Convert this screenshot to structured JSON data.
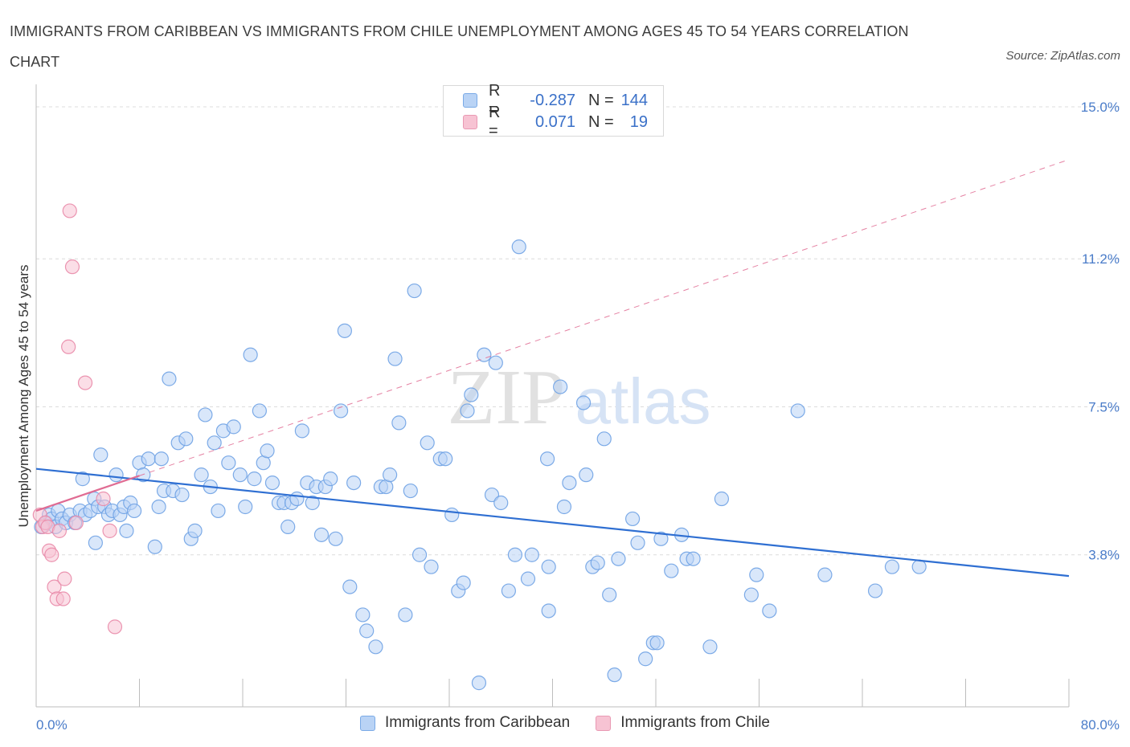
{
  "title": "IMMIGRANTS FROM CARIBBEAN VS IMMIGRANTS FROM CHILE UNEMPLOYMENT AMONG AGES 45 TO 54 YEARS CORRELATION CHART",
  "source": "Source: ZipAtlas.com",
  "watermark": {
    "zip": "ZIP",
    "atlas": "atlas"
  },
  "legend": {
    "rows": [
      {
        "r_label": "R =",
        "r_value": "-0.287",
        "n_label": "N =",
        "n_value": "144",
        "color": "#b9d3f5",
        "border": "#7aaae6"
      },
      {
        "r_label": "R =",
        "r_value": "0.071",
        "n_label": "N =",
        "n_value": "19",
        "color": "#f7c3d3",
        "border": "#e999b3"
      }
    ]
  },
  "bottom_legend": [
    {
      "label": "Immigrants from Caribbean",
      "color": "#b9d3f5",
      "border": "#7aaae6"
    },
    {
      "label": "Immigrants from Chile",
      "color": "#f7c3d3",
      "border": "#e999b3"
    }
  ],
  "chart_data": {
    "type": "scatter",
    "title": "IMMIGRANTS FROM CARIBBEAN VS IMMIGRANTS FROM CHILE UNEMPLOYMENT AMONG AGES 45 TO 54 YEARS CORRELATION CHART",
    "xlabel": "",
    "ylabel": "Unemployment Among Ages 45 to 54 years",
    "xlim": [
      0,
      80
    ],
    "ylim": [
      0,
      15.3
    ],
    "x_tick_labels": [
      "0.0%",
      "80.0%"
    ],
    "y_ticks": [
      {
        "value": 3.8,
        "label": "3.8%"
      },
      {
        "value": 7.5,
        "label": "7.5%"
      },
      {
        "value": 11.2,
        "label": "11.2%"
      },
      {
        "value": 15.0,
        "label": "15.0%"
      }
    ],
    "grid": true,
    "legend_position": "top-center",
    "series": [
      {
        "name": "Immigrants from Caribbean",
        "color": "#6fa2e4",
        "fill": "#b9d3f5",
        "trend": {
          "x": [
            0,
            80
          ],
          "y": [
            5.95,
            3.27
          ],
          "color": "#2f6fd2",
          "style": "solid"
        },
        "points": [
          [
            0.4,
            4.5
          ],
          [
            0.8,
            4.6
          ],
          [
            1.0,
            4.8
          ],
          [
            1.2,
            4.7
          ],
          [
            1.5,
            4.5
          ],
          [
            1.7,
            4.9
          ],
          [
            2.0,
            4.7
          ],
          [
            2.3,
            4.6
          ],
          [
            2.6,
            4.8
          ],
          [
            3.0,
            4.6
          ],
          [
            3.4,
            4.9
          ],
          [
            3.6,
            5.7
          ],
          [
            3.8,
            4.8
          ],
          [
            4.2,
            4.9
          ],
          [
            4.5,
            5.2
          ],
          [
            4.8,
            5.0
          ],
          [
            4.6,
            4.1
          ],
          [
            5.0,
            6.3
          ],
          [
            5.3,
            5.0
          ],
          [
            5.6,
            4.8
          ],
          [
            5.9,
            4.9
          ],
          [
            6.2,
            5.8
          ],
          [
            6.5,
            4.8
          ],
          [
            6.8,
            5.0
          ],
          [
            7.0,
            4.4
          ],
          [
            7.3,
            5.1
          ],
          [
            7.6,
            4.9
          ],
          [
            8.0,
            6.1
          ],
          [
            8.3,
            5.8
          ],
          [
            8.7,
            6.2
          ],
          [
            9.2,
            4.0
          ],
          [
            9.5,
            5.0
          ],
          [
            9.7,
            6.2
          ],
          [
            9.9,
            5.4
          ],
          [
            10.3,
            8.2
          ],
          [
            10.6,
            5.4
          ],
          [
            11.0,
            6.6
          ],
          [
            11.3,
            5.3
          ],
          [
            11.6,
            6.7
          ],
          [
            12.0,
            4.2
          ],
          [
            12.3,
            4.4
          ],
          [
            12.8,
            5.8
          ],
          [
            13.1,
            7.3
          ],
          [
            13.5,
            5.5
          ],
          [
            13.8,
            6.6
          ],
          [
            14.1,
            4.9
          ],
          [
            14.5,
            6.9
          ],
          [
            14.9,
            6.1
          ],
          [
            15.3,
            7.0
          ],
          [
            15.8,
            5.8
          ],
          [
            16.2,
            5.0
          ],
          [
            16.6,
            8.8
          ],
          [
            16.9,
            5.7
          ],
          [
            17.3,
            7.4
          ],
          [
            17.6,
            6.1
          ],
          [
            17.9,
            6.4
          ],
          [
            18.3,
            5.6
          ],
          [
            18.8,
            5.1
          ],
          [
            19.2,
            5.1
          ],
          [
            19.5,
            4.5
          ],
          [
            19.8,
            5.1
          ],
          [
            20.2,
            5.2
          ],
          [
            20.6,
            6.9
          ],
          [
            21.0,
            5.6
          ],
          [
            21.4,
            5.1
          ],
          [
            21.7,
            5.5
          ],
          [
            22.1,
            4.3
          ],
          [
            22.4,
            5.5
          ],
          [
            22.8,
            5.7
          ],
          [
            23.2,
            4.2
          ],
          [
            23.6,
            7.4
          ],
          [
            23.9,
            9.4
          ],
          [
            24.3,
            3.0
          ],
          [
            24.6,
            5.6
          ],
          [
            25.3,
            2.3
          ],
          [
            25.6,
            1.9
          ],
          [
            26.3,
            1.5
          ],
          [
            26.7,
            5.5
          ],
          [
            27.1,
            5.5
          ],
          [
            27.4,
            5.8
          ],
          [
            27.8,
            8.7
          ],
          [
            28.1,
            7.1
          ],
          [
            28.6,
            2.3
          ],
          [
            29.0,
            5.4
          ],
          [
            29.3,
            10.4
          ],
          [
            29.7,
            3.8
          ],
          [
            30.3,
            6.6
          ],
          [
            30.6,
            3.5
          ],
          [
            31.3,
            6.2
          ],
          [
            31.7,
            6.2
          ],
          [
            32.2,
            4.8
          ],
          [
            32.7,
            2.9
          ],
          [
            33.1,
            3.1
          ],
          [
            33.4,
            7.4
          ],
          [
            33.7,
            7.8
          ],
          [
            34.3,
            0.6
          ],
          [
            34.7,
            8.8
          ],
          [
            35.3,
            5.3
          ],
          [
            35.6,
            8.6
          ],
          [
            36.0,
            5.1
          ],
          [
            36.6,
            2.9
          ],
          [
            37.1,
            3.8
          ],
          [
            37.4,
            11.5
          ],
          [
            38.1,
            3.2
          ],
          [
            38.4,
            3.8
          ],
          [
            39.6,
            6.2
          ],
          [
            39.7,
            3.5
          ],
          [
            39.7,
            2.4
          ],
          [
            40.6,
            8.0
          ],
          [
            40.9,
            5.0
          ],
          [
            41.3,
            5.6
          ],
          [
            42.4,
            7.6
          ],
          [
            42.6,
            5.8
          ],
          [
            43.1,
            3.5
          ],
          [
            43.5,
            3.6
          ],
          [
            44.0,
            6.7
          ],
          [
            44.4,
            2.8
          ],
          [
            44.8,
            0.8
          ],
          [
            45.1,
            3.7
          ],
          [
            46.2,
            4.7
          ],
          [
            46.6,
            4.1
          ],
          [
            47.2,
            1.2
          ],
          [
            47.8,
            1.6
          ],
          [
            48.1,
            1.6
          ],
          [
            48.4,
            4.2
          ],
          [
            49.2,
            3.4
          ],
          [
            50.0,
            4.3
          ],
          [
            50.4,
            3.7
          ],
          [
            50.9,
            3.7
          ],
          [
            52.2,
            1.5
          ],
          [
            53.1,
            5.2
          ],
          [
            55.4,
            2.8
          ],
          [
            55.8,
            3.3
          ],
          [
            56.8,
            2.4
          ],
          [
            59.0,
            7.4
          ],
          [
            61.1,
            3.3
          ],
          [
            65.0,
            2.9
          ],
          [
            66.3,
            3.5
          ],
          [
            68.4,
            3.5
          ]
        ]
      },
      {
        "name": "Immigrants from Chile",
        "color": "#e98aa8",
        "fill": "#f7c3d3",
        "trend": {
          "x": [
            0,
            80
          ],
          "y": [
            4.9,
            13.68
          ],
          "color": "#e06c93",
          "style": "dashed",
          "solid_until": 8
        },
        "points": [
          [
            0.3,
            4.8
          ],
          [
            0.5,
            4.5
          ],
          [
            0.7,
            4.6
          ],
          [
            0.9,
            4.5
          ],
          [
            1.0,
            3.9
          ],
          [
            1.2,
            3.8
          ],
          [
            1.4,
            3.0
          ],
          [
            1.6,
            2.7
          ],
          [
            1.8,
            4.4
          ],
          [
            2.1,
            2.7
          ],
          [
            2.2,
            3.2
          ],
          [
            2.5,
            9.0
          ],
          [
            2.6,
            12.4
          ],
          [
            2.8,
            11.0
          ],
          [
            3.1,
            4.6
          ],
          [
            3.8,
            8.1
          ],
          [
            5.2,
            5.2
          ],
          [
            5.7,
            4.4
          ],
          [
            6.1,
            2.0
          ]
        ]
      }
    ]
  }
}
